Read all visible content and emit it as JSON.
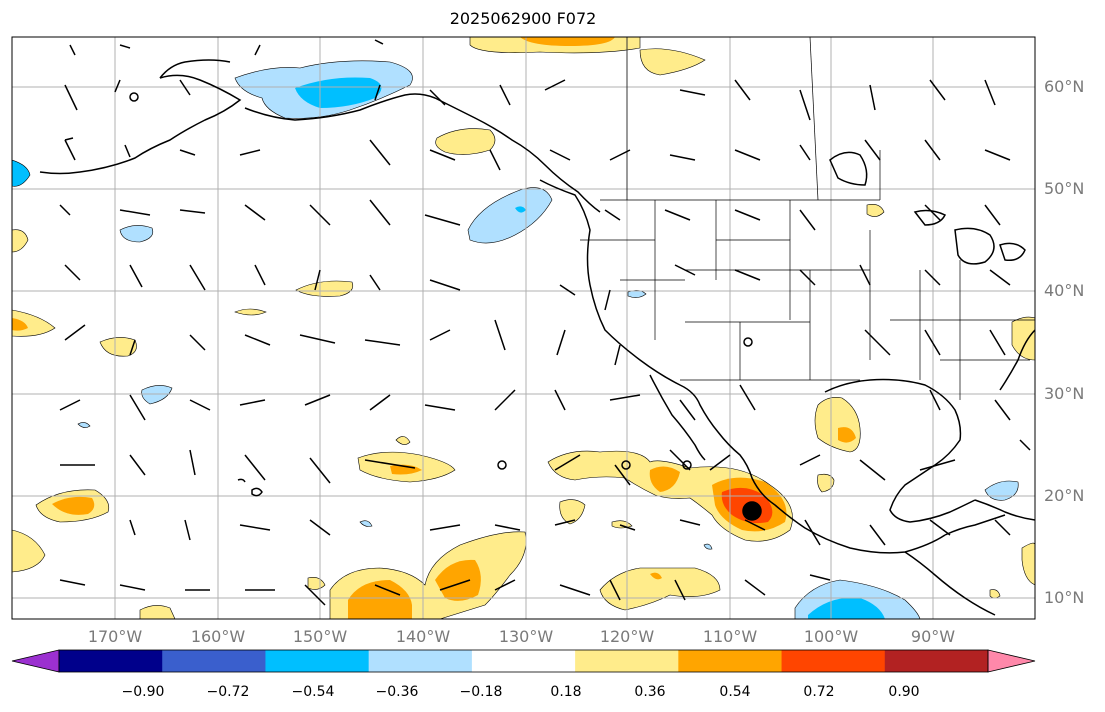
{
  "title": "2025062900 F072",
  "lat_labels": [
    "60°N",
    "50°N",
    "40°N",
    "30°N",
    "20°N",
    "10°N"
  ],
  "lon_labels": [
    "170°W",
    "160°W",
    "150°W",
    "140°W",
    "130°W",
    "120°W",
    "110°W",
    "100°W",
    "90°W"
  ],
  "colorbar": {
    "ticks": [
      "−0.90",
      "−0.72",
      "−0.54",
      "−0.36",
      "−0.18",
      "0.18",
      "0.36",
      "0.54",
      "0.72",
      "0.90"
    ],
    "colors": [
      "#9b30d0",
      "#00008b",
      "#3a5fcd",
      "#00bfff",
      "#b0e0ff",
      "#ffffff",
      "#ffec8b",
      "#ffa500",
      "#ff4500",
      "#b22222",
      "#ff88aa"
    ]
  },
  "colors": {
    "positive_light": "#ffec8b",
    "positive_mid": "#ffa500",
    "positive_high": "#ff4500",
    "negative_light": "#b0e0ff",
    "negative_mid": "#00bfff",
    "grid": "#b0b0b0"
  }
}
